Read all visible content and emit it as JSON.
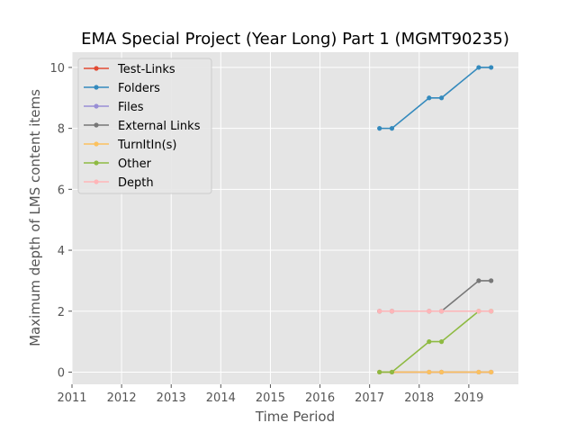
{
  "chart_data": {
    "type": "line",
    "title": "EMA Special Project (Year Long) Part 1 (MGMT90235)",
    "xlabel": "Time Period",
    "ylabel": "Maximum depth of LMS content items",
    "xlim": [
      2011,
      2020
    ],
    "ylim": [
      -0.4,
      10.5
    ],
    "xticks": [
      2011,
      2012,
      2013,
      2014,
      2015,
      2016,
      2017,
      2018,
      2019
    ],
    "xtick_labels": [
      "2011",
      "2012",
      "2013",
      "2014",
      "2015",
      "2016",
      "2017",
      "2018",
      "2019"
    ],
    "yticks": [
      0,
      2,
      4,
      6,
      8,
      10
    ],
    "ytick_labels": [
      "0",
      "2",
      "4",
      "6",
      "8",
      "10"
    ],
    "grid": true,
    "legend_position": "top-left",
    "x": [
      2017.2,
      2017.45,
      2018.2,
      2018.45,
      2019.2,
      2019.45
    ],
    "series": [
      {
        "name": "Test-Links",
        "color": "#E24A33",
        "values": [
          0,
          0,
          0,
          0,
          0,
          0
        ]
      },
      {
        "name": "Folders",
        "color": "#348ABD",
        "values": [
          8,
          8,
          9,
          9,
          10,
          10
        ]
      },
      {
        "name": "Files",
        "color": "#988ED5",
        "values": [
          0,
          0,
          0,
          0,
          0,
          0
        ]
      },
      {
        "name": "External Links",
        "color": "#777777",
        "values": [
          2,
          2,
          2,
          2,
          3,
          3
        ]
      },
      {
        "name": "TurnItIn(s)",
        "color": "#FBC15E",
        "values": [
          0,
          0,
          0,
          0,
          0,
          0
        ]
      },
      {
        "name": "Other",
        "color": "#8EBA42",
        "values": [
          0,
          0,
          1,
          1,
          2,
          2
        ]
      },
      {
        "name": "Depth",
        "color": "#FFB5B8",
        "values": [
          2,
          2,
          2,
          2,
          2,
          2
        ]
      }
    ]
  }
}
